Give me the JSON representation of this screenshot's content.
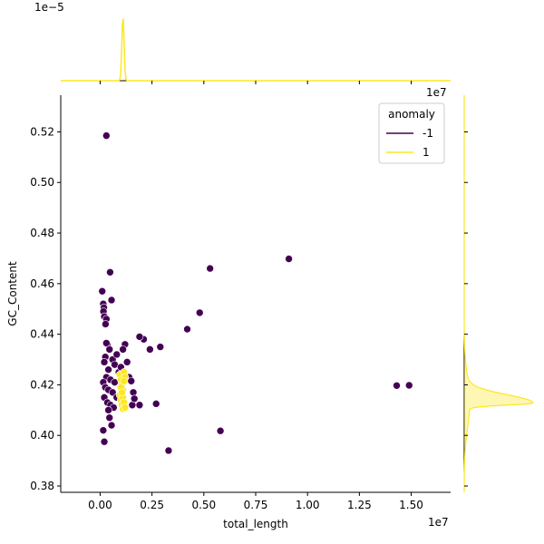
{
  "chart_data": {
    "type": "scatter",
    "xlabel": "total_length",
    "ylabel": "GC_Content",
    "x_offset_text": "1e7",
    "top_offset_text": "1e−5",
    "right_offset_text": "1e7",
    "xlim": [
      -1900000,
      16900000
    ],
    "ylim": [
      0.3775,
      0.5345
    ],
    "x_ticks": [
      0,
      2500000,
      5000000,
      7500000,
      10000000,
      12500000,
      15000000
    ],
    "x_tick_labels": [
      "0.00",
      "0.25",
      "0.50",
      "0.75",
      "1.00",
      "1.25",
      "1.50"
    ],
    "y_ticks": [
      0.38,
      0.4,
      0.42,
      0.44,
      0.46,
      0.48,
      0.5,
      0.52
    ],
    "y_tick_labels": [
      "0.38",
      "0.40",
      "0.42",
      "0.44",
      "0.46",
      "0.48",
      "0.50",
      "0.52"
    ],
    "legend": {
      "title": "anomaly",
      "placement": "top-right",
      "entries": [
        {
          "label": "-1",
          "color": "#440154"
        },
        {
          "label": "1",
          "color": "#fde725"
        }
      ]
    },
    "colors": {
      "anomaly_-1": "#440154",
      "anomaly_1": "#fde725",
      "marker_edge": "#ffffff"
    },
    "series": [
      {
        "label": "-1",
        "points": [
          [
            300000,
            0.5185
          ],
          [
            480000,
            0.4645
          ],
          [
            5300000,
            0.466
          ],
          [
            9100000,
            0.4698
          ],
          [
            4800000,
            0.4485
          ],
          [
            4200000,
            0.442
          ],
          [
            2900000,
            0.435
          ],
          [
            2400000,
            0.434
          ],
          [
            2100000,
            0.438
          ],
          [
            1900000,
            0.439
          ],
          [
            1900000,
            0.412
          ],
          [
            2700000,
            0.4125
          ],
          [
            14300000,
            0.4197
          ],
          [
            14900000,
            0.4198
          ],
          [
            5800000,
            0.4018
          ],
          [
            3300000,
            0.394
          ],
          [
            100000,
            0.457
          ],
          [
            150000,
            0.452
          ],
          [
            180000,
            0.4505
          ],
          [
            160000,
            0.449
          ],
          [
            200000,
            0.447
          ],
          [
            300000,
            0.446
          ],
          [
            260000,
            0.444
          ],
          [
            550000,
            0.4535
          ],
          [
            250000,
            0.431
          ],
          [
            350000,
            0.436
          ],
          [
            450000,
            0.434
          ],
          [
            200000,
            0.429
          ],
          [
            600000,
            0.43
          ],
          [
            400000,
            0.426
          ],
          [
            300000,
            0.423
          ],
          [
            500000,
            0.422
          ],
          [
            150000,
            0.421
          ],
          [
            250000,
            0.419
          ],
          [
            400000,
            0.418
          ],
          [
            600000,
            0.417
          ],
          [
            700000,
            0.428
          ],
          [
            800000,
            0.432
          ],
          [
            900000,
            0.425
          ],
          [
            200000,
            0.415
          ],
          [
            350000,
            0.413
          ],
          [
            500000,
            0.412
          ],
          [
            650000,
            0.411
          ],
          [
            450000,
            0.407
          ],
          [
            550000,
            0.404
          ],
          [
            150000,
            0.402
          ],
          [
            200000,
            0.3975
          ],
          [
            1200000,
            0.436
          ],
          [
            1300000,
            0.429
          ],
          [
            1400000,
            0.423
          ],
          [
            1500000,
            0.4215
          ],
          [
            1600000,
            0.417
          ],
          [
            1100000,
            0.434
          ],
          [
            300000,
            0.4365
          ],
          [
            700000,
            0.421
          ],
          [
            800000,
            0.415
          ],
          [
            1550000,
            0.412
          ],
          [
            1650000,
            0.4145
          ],
          [
            1000000,
            0.427
          ],
          [
            400000,
            0.41
          ]
        ]
      },
      {
        "label": "1",
        "points": [
          [
            950000,
            0.424
          ],
          [
            1000000,
            0.422
          ],
          [
            1050000,
            0.42
          ],
          [
            1100000,
            0.418
          ],
          [
            950000,
            0.416
          ],
          [
            1000000,
            0.414
          ],
          [
            1050000,
            0.412
          ],
          [
            1100000,
            0.4105
          ],
          [
            1150000,
            0.425
          ],
          [
            1200000,
            0.423
          ],
          [
            1000000,
            0.419
          ],
          [
            1100000,
            0.415
          ],
          [
            1150000,
            0.413
          ],
          [
            1200000,
            0.411
          ],
          [
            1050000,
            0.417
          ],
          [
            1150000,
            0.4215
          ]
        ]
      }
    ],
    "marginal_top": {
      "peak_x": 1100000,
      "color": "#fde725"
    },
    "marginal_right": {
      "peak_y": 0.4128,
      "color": "#fde725"
    }
  }
}
